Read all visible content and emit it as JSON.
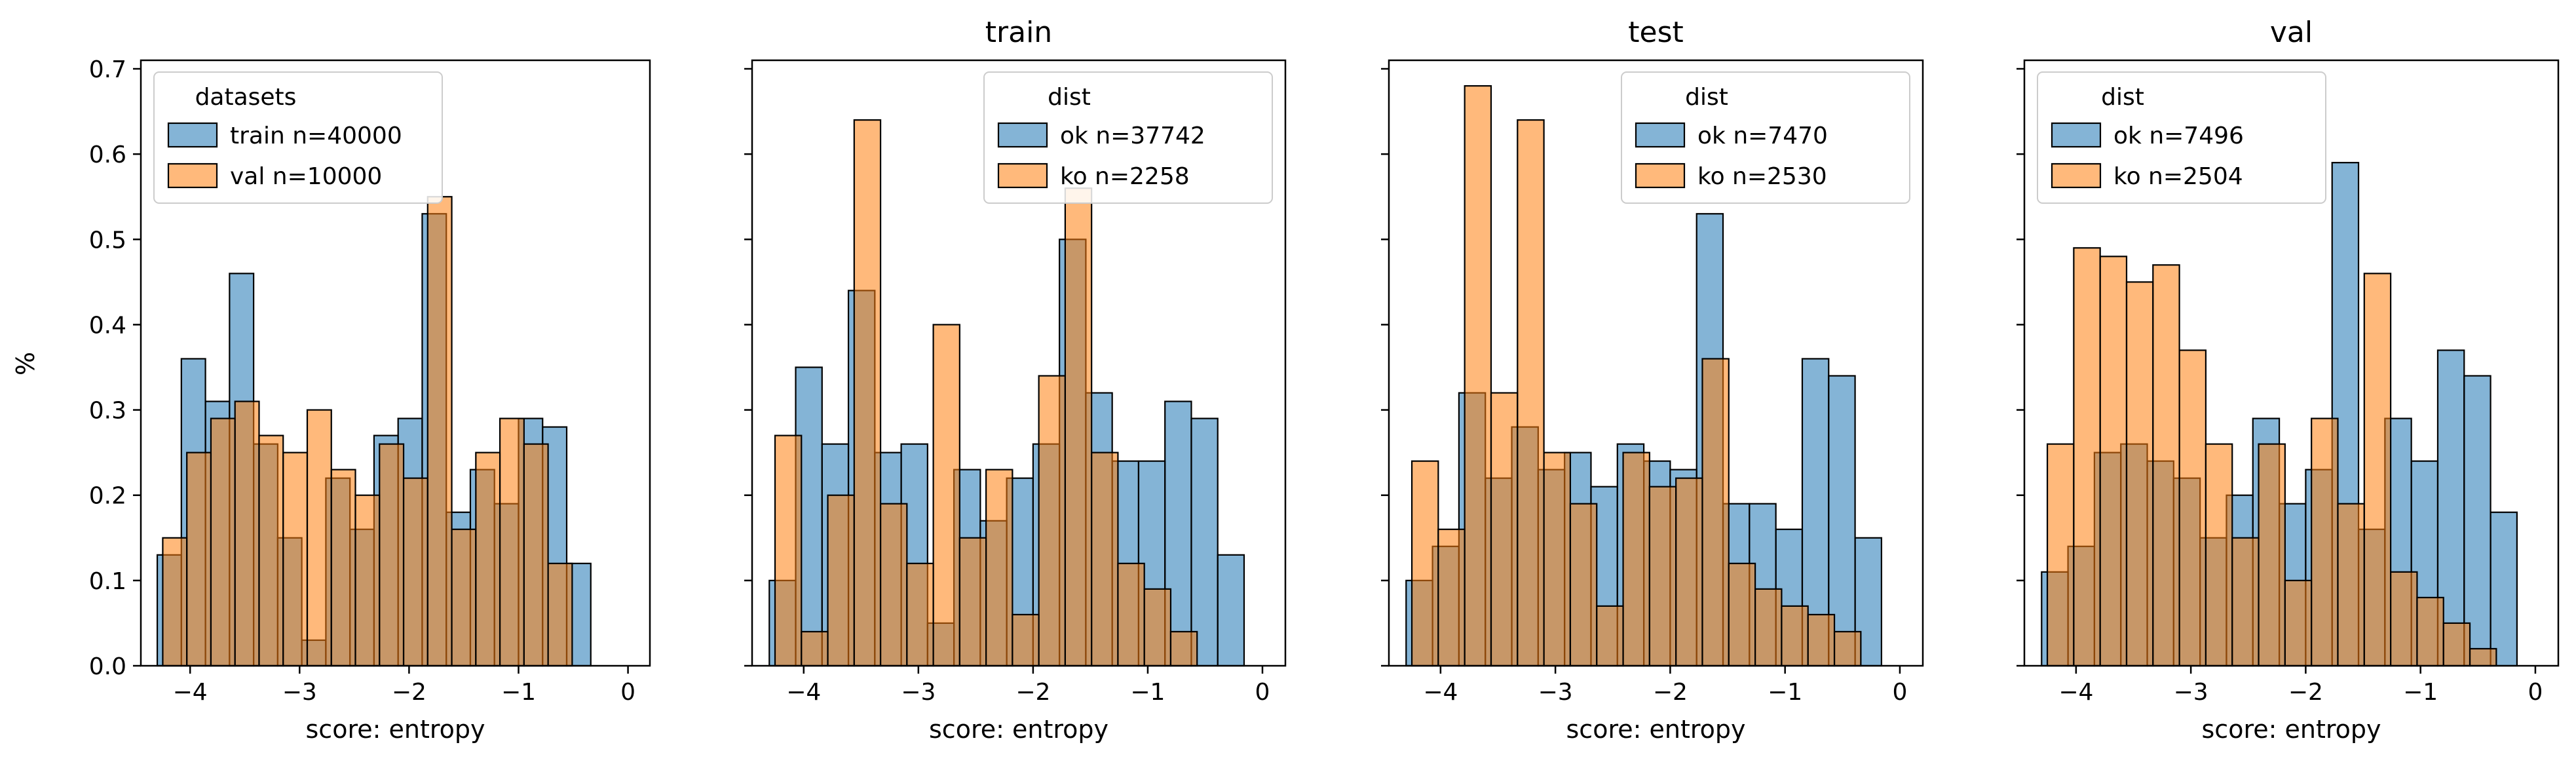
{
  "figure": {
    "ylabel": "%"
  },
  "colors": {
    "series_1": "#1f77b4",
    "series_2": "#ff7f0e",
    "edge": "#000000"
  },
  "chart_data": [
    {
      "type": "bar",
      "title": "",
      "xlabel": "score: entropy",
      "ylabel": "%",
      "xlim": [
        -4.45,
        0.2
      ],
      "ylim": [
        0,
        0.71
      ],
      "x_ticks": [
        -4,
        -3,
        -2,
        -1,
        0
      ],
      "y_ticks": [
        0.0,
        0.1,
        0.2,
        0.3,
        0.4,
        0.5,
        0.6,
        0.7
      ],
      "legend": {
        "title": "datasets",
        "placement": "upper left"
      },
      "series": [
        {
          "name": "train n=40000",
          "color": "#1f77b4",
          "bin_edges": [
            -4.3,
            -4.08,
            -3.86,
            -3.64,
            -3.42,
            -3.2,
            -2.98,
            -2.76,
            -2.54,
            -2.32,
            -2.1,
            -1.88,
            -1.66,
            -1.44,
            -1.22,
            -1.0,
            -0.78,
            -0.56,
            -0.34,
            -0.12,
            0.1
          ],
          "values": [
            0.13,
            0.36,
            0.31,
            0.46,
            0.26,
            0.15,
            0.03,
            0.22,
            0.16,
            0.27,
            0.29,
            0.53,
            0.18,
            0.23,
            0.19,
            0.29,
            0.28,
            0.12,
            0.0,
            0.0
          ]
        },
        {
          "name": "val n=10000",
          "color": "#ff7f0e",
          "bin_edges": [
            -4.25,
            -4.03,
            -3.81,
            -3.59,
            -3.37,
            -3.15,
            -2.93,
            -2.71,
            -2.49,
            -2.27,
            -2.05,
            -1.83,
            -1.61,
            -1.39,
            -1.17,
            -0.95,
            -0.73,
            -0.51,
            -0.29,
            -0.07,
            0.15
          ],
          "values": [
            0.15,
            0.25,
            0.29,
            0.31,
            0.27,
            0.25,
            0.3,
            0.23,
            0.2,
            0.26,
            0.22,
            0.55,
            0.16,
            0.25,
            0.29,
            0.26,
            0.12,
            0.0,
            0.0,
            0.0
          ]
        }
      ]
    },
    {
      "type": "bar",
      "title": "train",
      "xlabel": "score: entropy",
      "ylabel": "",
      "xlim": [
        -4.45,
        0.2
      ],
      "ylim": [
        0,
        0.71
      ],
      "x_ticks": [
        -4,
        -3,
        -2,
        -1,
        0
      ],
      "y_ticks": [
        0.0,
        0.1,
        0.2,
        0.3,
        0.4,
        0.5,
        0.6,
        0.7
      ],
      "legend": {
        "title": "dist",
        "placement": "upper right"
      },
      "series": [
        {
          "name": "ok n=37742",
          "color": "#1f77b4",
          "bin_edges": [
            -4.3,
            -4.07,
            -3.84,
            -3.61,
            -3.38,
            -3.15,
            -2.92,
            -2.69,
            -2.46,
            -2.23,
            -2.0,
            -1.77,
            -1.54,
            -1.31,
            -1.08,
            -0.85,
            -0.62,
            -0.39,
            -0.16,
            0.07
          ],
          "values": [
            0.1,
            0.35,
            0.26,
            0.44,
            0.25,
            0.26,
            0.05,
            0.23,
            0.17,
            0.22,
            0.26,
            0.5,
            0.32,
            0.24,
            0.24,
            0.31,
            0.29,
            0.13,
            0.0
          ]
        },
        {
          "name": "ko n=2258",
          "color": "#ff7f0e",
          "bin_edges": [
            -4.25,
            -4.02,
            -3.79,
            -3.56,
            -3.33,
            -3.1,
            -2.87,
            -2.64,
            -2.41,
            -2.18,
            -1.95,
            -1.72,
            -1.49,
            -1.26,
            -1.03,
            -0.8,
            -0.57,
            -0.34,
            -0.11
          ],
          "values": [
            0.27,
            0.04,
            0.2,
            0.64,
            0.19,
            0.12,
            0.4,
            0.15,
            0.23,
            0.06,
            0.34,
            0.56,
            0.25,
            0.12,
            0.09,
            0.04,
            0.0,
            0.0
          ]
        }
      ]
    },
    {
      "type": "bar",
      "title": "test",
      "xlabel": "score: entropy",
      "ylabel": "",
      "xlim": [
        -4.45,
        0.2
      ],
      "ylim": [
        0,
        0.71
      ],
      "x_ticks": [
        -4,
        -3,
        -2,
        -1,
        0
      ],
      "y_ticks": [
        0.0,
        0.1,
        0.2,
        0.3,
        0.4,
        0.5,
        0.6,
        0.7
      ],
      "legend": {
        "title": "dist",
        "placement": "upper right"
      },
      "series": [
        {
          "name": "ok n=7470",
          "color": "#1f77b4",
          "bin_edges": [
            -4.3,
            -4.07,
            -3.84,
            -3.61,
            -3.38,
            -3.15,
            -2.92,
            -2.69,
            -2.46,
            -2.23,
            -2.0,
            -1.77,
            -1.54,
            -1.31,
            -1.08,
            -0.85,
            -0.62,
            -0.39,
            -0.16,
            0.07
          ],
          "values": [
            0.1,
            0.14,
            0.32,
            0.22,
            0.28,
            0.23,
            0.25,
            0.21,
            0.26,
            0.24,
            0.23,
            0.53,
            0.19,
            0.19,
            0.16,
            0.36,
            0.34,
            0.15,
            0.0
          ]
        },
        {
          "name": "ko n=2530",
          "color": "#ff7f0e",
          "bin_edges": [
            -4.25,
            -4.02,
            -3.79,
            -3.56,
            -3.33,
            -3.1,
            -2.87,
            -2.64,
            -2.41,
            -2.18,
            -1.95,
            -1.72,
            -1.49,
            -1.26,
            -1.03,
            -0.8,
            -0.57,
            -0.34,
            -0.11
          ],
          "values": [
            0.24,
            0.16,
            0.68,
            0.32,
            0.64,
            0.25,
            0.19,
            0.07,
            0.25,
            0.21,
            0.22,
            0.36,
            0.12,
            0.09,
            0.07,
            0.06,
            0.04,
            0.0
          ]
        }
      ]
    },
    {
      "type": "bar",
      "title": "val",
      "xlabel": "score: entropy",
      "ylabel": "",
      "xlim": [
        -4.45,
        0.2
      ],
      "ylim": [
        0,
        0.71
      ],
      "x_ticks": [
        -4,
        -3,
        -2,
        -1,
        0
      ],
      "y_ticks": [
        0.0,
        0.1,
        0.2,
        0.3,
        0.4,
        0.5,
        0.6,
        0.7
      ],
      "legend": {
        "title": "dist",
        "placement": "upper left"
      },
      "series": [
        {
          "name": "ok n=7496",
          "color": "#1f77b4",
          "bin_edges": [
            -4.3,
            -4.07,
            -3.84,
            -3.61,
            -3.38,
            -3.15,
            -2.92,
            -2.69,
            -2.46,
            -2.23,
            -2.0,
            -1.77,
            -1.54,
            -1.31,
            -1.08,
            -0.85,
            -0.62,
            -0.39,
            -0.16,
            0.07
          ],
          "values": [
            0.11,
            0.14,
            0.25,
            0.26,
            0.24,
            0.22,
            0.15,
            0.2,
            0.29,
            0.19,
            0.23,
            0.59,
            0.16,
            0.29,
            0.24,
            0.37,
            0.34,
            0.18,
            0.0
          ]
        },
        {
          "name": "ko n=2504",
          "color": "#ff7f0e",
          "bin_edges": [
            -4.25,
            -4.02,
            -3.79,
            -3.56,
            -3.33,
            -3.1,
            -2.87,
            -2.64,
            -2.41,
            -2.18,
            -1.95,
            -1.72,
            -1.49,
            -1.26,
            -1.03,
            -0.8,
            -0.57,
            -0.34,
            -0.11
          ],
          "values": [
            0.26,
            0.49,
            0.48,
            0.45,
            0.47,
            0.37,
            0.26,
            0.15,
            0.26,
            0.1,
            0.29,
            0.19,
            0.46,
            0.11,
            0.08,
            0.05,
            0.02,
            0.0
          ]
        }
      ]
    }
  ]
}
